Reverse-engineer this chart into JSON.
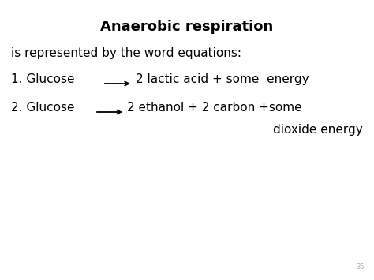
{
  "title": "Anaerobic respiration",
  "subtitle": "is represented by the word equations:",
  "line1_text1": "1. Glucose",
  "line1_text2": "2 lactic acid + some  energy",
  "line2_text1": "2. Glucose",
  "line2_text2": "2 ethanol + 2 carbon +some",
  "line2_cont": "dioxide energy",
  "page_number": "35",
  "bg_color": "#ffffff",
  "text_color": "#000000",
  "title_fontsize": 13,
  "body_fontsize": 11,
  "small_fontsize": 6
}
